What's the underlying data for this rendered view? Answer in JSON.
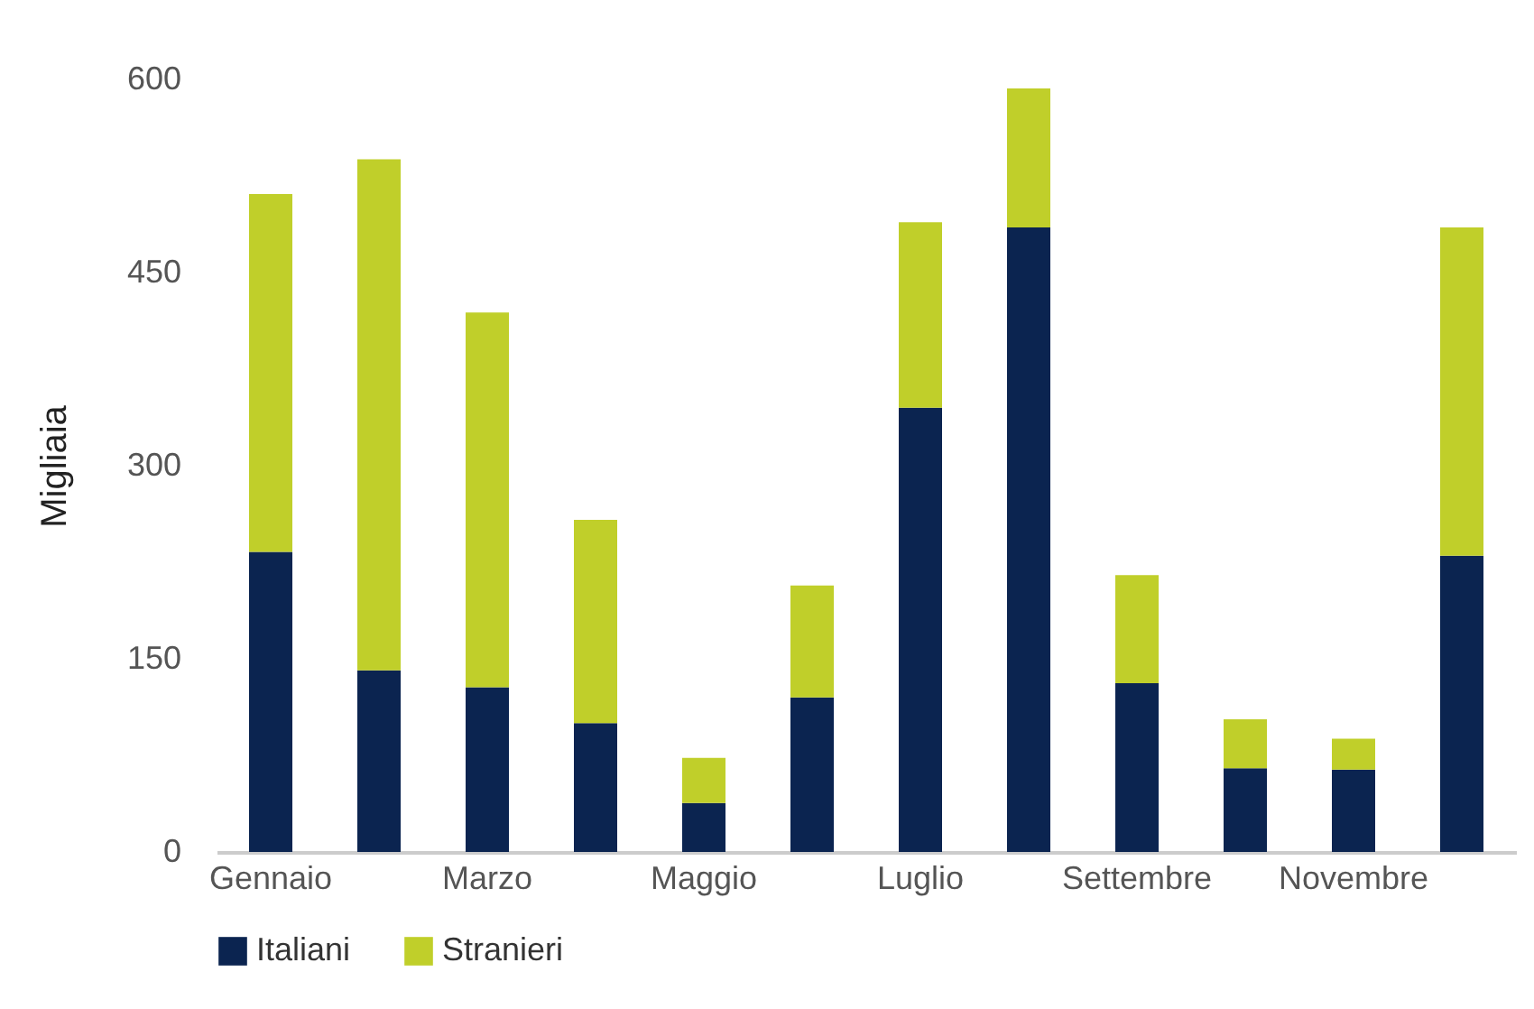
{
  "chart_data": {
    "type": "bar",
    "stacked": true,
    "ylabel": "Migliaia",
    "categories": [
      "Gennaio",
      null,
      "Marzo",
      null,
      "Maggio",
      null,
      "Luglio",
      null,
      "Settembre",
      null,
      "Novembre",
      null
    ],
    "series": [
      {
        "name": "Italiani",
        "color": "#0b2450",
        "values": [
          233,
          141,
          128,
          100,
          38,
          120,
          345,
          485,
          131,
          65,
          64,
          230
        ]
      },
      {
        "name": "Stranieri",
        "color": "#c0cf2a",
        "values": [
          278,
          397,
          291,
          158,
          35,
          87,
          144,
          108,
          84,
          38,
          24,
          255
        ]
      }
    ],
    "ylim": [
      0,
      600
    ],
    "yticks": [
      0,
      150,
      300,
      450,
      600
    ],
    "grid": false,
    "legend": "bottom"
  }
}
